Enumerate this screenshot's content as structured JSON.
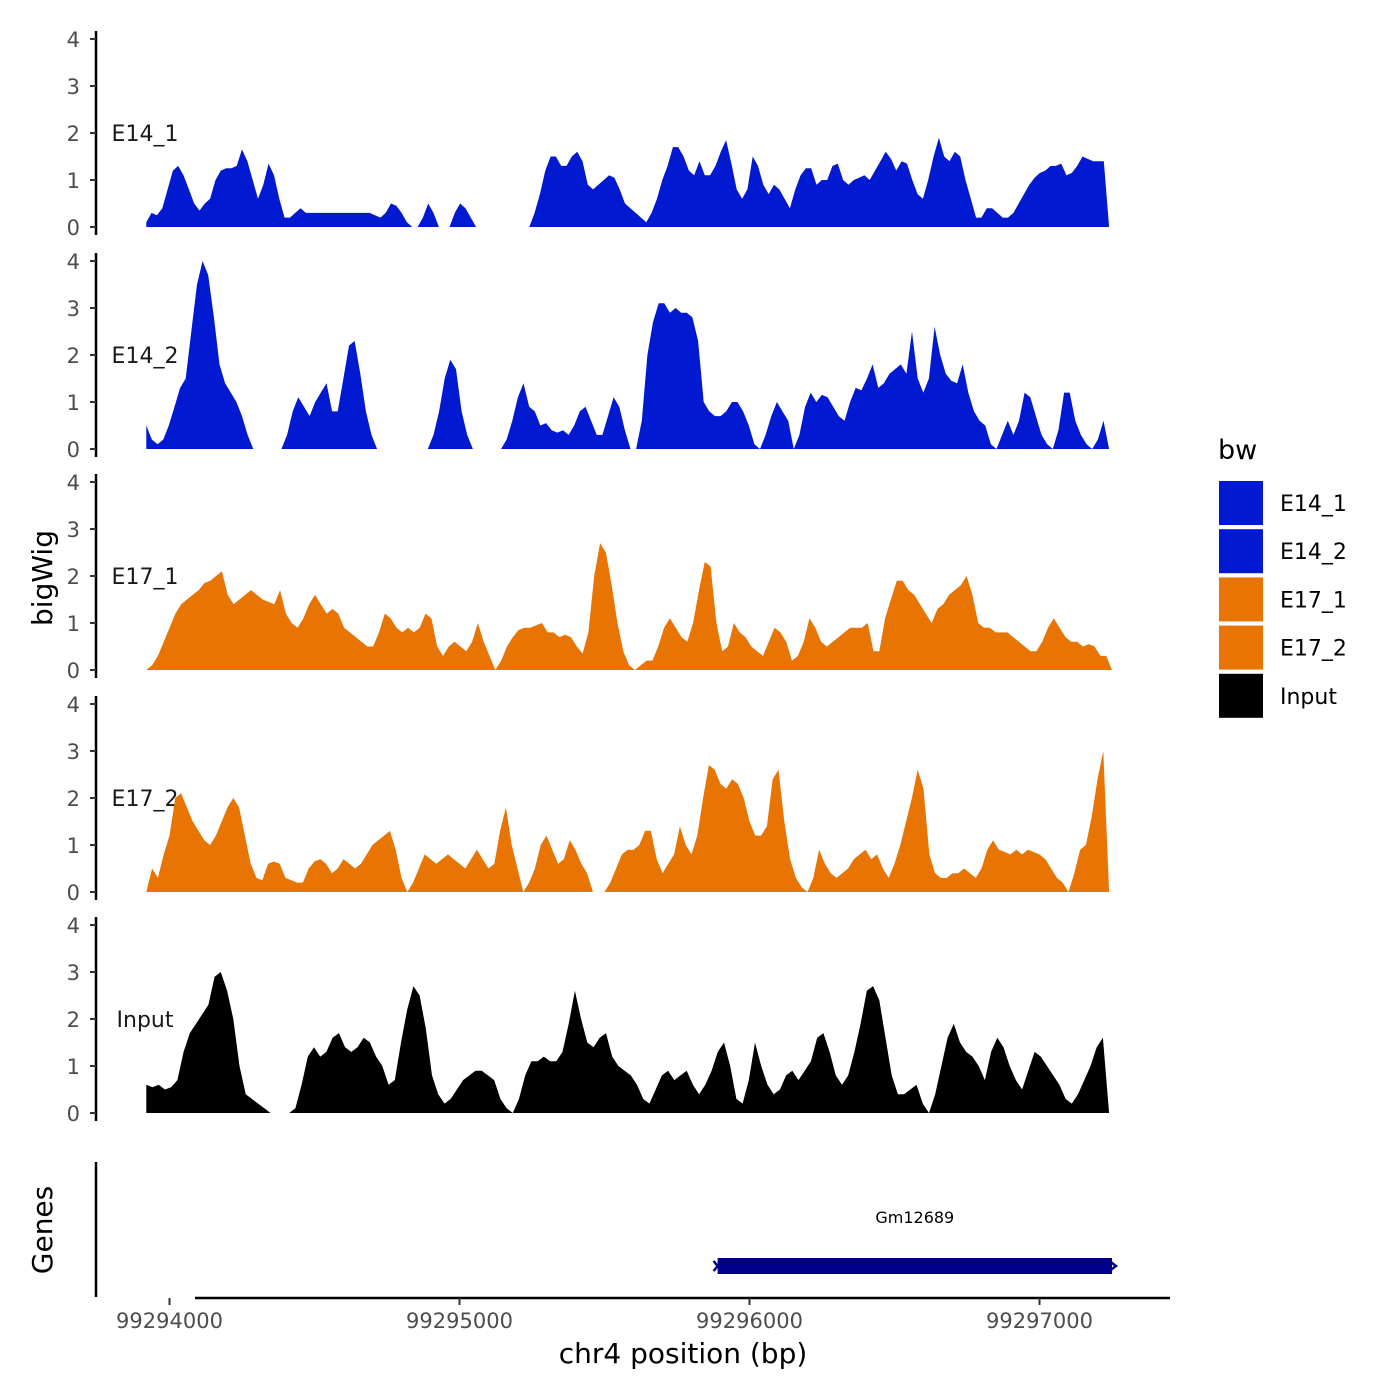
{
  "chart_data": {
    "type": "area",
    "ylabel": "bigWig",
    "genes_label": "Genes",
    "xlabel": "chr4 position (bp)",
    "xlim": [
      99293750,
      99297450
    ],
    "x_ticks": [
      "99294000",
      "99295000",
      "99296000",
      "99297000"
    ],
    "x_tick_values": [
      99294000,
      99295000,
      99296000,
      99297000
    ],
    "ylim": [
      0,
      4
    ],
    "y_ticks": [
      "0",
      "1",
      "2",
      "3",
      "4"
    ],
    "legend": {
      "title": "bw",
      "entries": [
        {
          "label": "E14_1",
          "color": "#0019d1"
        },
        {
          "label": "E14_2",
          "color": "#0019d1"
        },
        {
          "label": "E17_1",
          "color": "#e87404"
        },
        {
          "label": "E17_2",
          "color": "#e87404"
        },
        {
          "label": "Input",
          "color": "#000000"
        }
      ]
    },
    "series": [
      {
        "name": "E14_1",
        "color": "#0019d1",
        "x_start": 99293920,
        "x_end": 99297240,
        "values": [
          0.1,
          0.3,
          0.25,
          0.4,
          0.8,
          1.2,
          1.3,
          1.1,
          0.8,
          0.5,
          0.35,
          0.5,
          0.6,
          1.0,
          1.2,
          1.25,
          1.25,
          1.3,
          1.65,
          1.4,
          1.0,
          0.6,
          0.9,
          1.35,
          1.1,
          0.6,
          0.2,
          0.2,
          0.3,
          0.4,
          0.3,
          0.3,
          0.3,
          0.3,
          0.3,
          0.3,
          0.3,
          0.3,
          0.3,
          0.3,
          0.3,
          0.3,
          0.3,
          0.25,
          0.2,
          0.3,
          0.5,
          0.45,
          0.3,
          0.1,
          0.0,
          0.0,
          0.2,
          0.5,
          0.3,
          0.0,
          0.0,
          0.0,
          0.3,
          0.5,
          0.4,
          0.2,
          0.0,
          null,
          null,
          null,
          null,
          null,
          null,
          null,
          null,
          null,
          0.0,
          0.3,
          0.7,
          1.2,
          1.5,
          1.5,
          1.3,
          1.3,
          1.5,
          1.6,
          1.4,
          0.9,
          0.8,
          0.9,
          1.0,
          1.1,
          1.05,
          0.8,
          0.5,
          0.4,
          0.3,
          0.2,
          0.1,
          0.3,
          0.6,
          1.0,
          1.3,
          1.7,
          1.7,
          1.5,
          1.2,
          1.1,
          1.4,
          1.1,
          1.1,
          1.3,
          1.6,
          1.85,
          1.35,
          0.8,
          0.6,
          0.8,
          1.5,
          1.3,
          0.9,
          0.7,
          0.9,
          0.8,
          0.6,
          0.4,
          0.8,
          1.1,
          1.25,
          1.25,
          0.9,
          1.0,
          1.0,
          1.3,
          1.35,
          1.0,
          0.9,
          1.0,
          1.05,
          1.1,
          1.0,
          1.2,
          1.4,
          1.6,
          1.45,
          1.2,
          1.4,
          1.35,
          1.0,
          0.7,
          0.6,
          1.0,
          1.5,
          1.9,
          1.5,
          1.4,
          1.6,
          1.5,
          1.0,
          0.6,
          0.2,
          0.2,
          0.4,
          0.4,
          0.3,
          0.2,
          0.2,
          0.3,
          0.5,
          0.7,
          0.9,
          1.05,
          1.15,
          1.2,
          1.3,
          1.3,
          1.35,
          1.1,
          1.15,
          1.3,
          1.5,
          1.45,
          1.4,
          1.4,
          1.4,
          0.0
        ]
      },
      {
        "name": "E14_2",
        "color": "#0019d1",
        "x_start": 99293920,
        "x_end": 99297240,
        "values": [
          0.5,
          0.2,
          0.1,
          0.2,
          0.5,
          0.9,
          1.3,
          1.5,
          2.5,
          3.5,
          4.0,
          3.7,
          2.8,
          1.8,
          1.4,
          1.2,
          1.0,
          0.7,
          0.3,
          0.0,
          0.0,
          null,
          null,
          0.0,
          0.0,
          0.3,
          0.8,
          1.1,
          0.9,
          0.7,
          1.0,
          1.2,
          1.4,
          0.8,
          0.8,
          1.5,
          2.2,
          2.3,
          1.6,
          0.8,
          0.3,
          0.0,
          0.0,
          null,
          null,
          null,
          null,
          null,
          null,
          null,
          0.0,
          0.3,
          0.8,
          1.5,
          1.9,
          1.7,
          0.8,
          0.3,
          0.0,
          null,
          null,
          null,
          null,
          0.0,
          0.2,
          0.6,
          1.1,
          1.4,
          0.9,
          0.8,
          0.5,
          0.55,
          0.4,
          0.35,
          0.4,
          0.3,
          0.5,
          0.8,
          0.9,
          0.6,
          0.3,
          0.3,
          0.7,
          1.1,
          0.9,
          0.4,
          0.0,
          0.0,
          0.6,
          2.0,
          2.7,
          3.1,
          3.1,
          2.9,
          3.0,
          2.9,
          2.9,
          2.8,
          2.3,
          1.0,
          0.8,
          0.7,
          0.7,
          0.8,
          1.0,
          1.0,
          0.8,
          0.5,
          0.1,
          0.0,
          0.3,
          0.7,
          1.0,
          0.8,
          0.6,
          0.0,
          0.3,
          0.9,
          1.2,
          1.0,
          1.15,
          1.1,
          0.9,
          0.7,
          0.6,
          1.0,
          1.3,
          1.25,
          1.5,
          1.8,
          1.3,
          1.4,
          1.6,
          1.7,
          1.8,
          1.6,
          2.5,
          1.5,
          1.2,
          1.5,
          2.6,
          2.0,
          1.6,
          1.45,
          1.4,
          1.8,
          1.2,
          0.8,
          0.6,
          0.5,
          0.1,
          0.0,
          0.3,
          0.6,
          0.3,
          0.6,
          1.2,
          1.1,
          0.7,
          0.3,
          0.1,
          0.0,
          0.4,
          1.2,
          1.2,
          0.6,
          0.3,
          0.1,
          0.0,
          0.2,
          0.6,
          0.0
        ]
      },
      {
        "name": "E17_1",
        "color": "#e87404",
        "x_start": 99293920,
        "x_end": 99297250,
        "values": [
          0.0,
          0.1,
          0.3,
          0.6,
          0.9,
          1.2,
          1.4,
          1.5,
          1.6,
          1.7,
          1.85,
          1.9,
          2.0,
          2.1,
          1.6,
          1.4,
          1.5,
          1.6,
          1.7,
          1.6,
          1.5,
          1.45,
          1.4,
          1.7,
          1.2,
          1.0,
          0.9,
          1.1,
          1.4,
          1.6,
          1.4,
          1.2,
          1.3,
          1.2,
          0.9,
          0.8,
          0.7,
          0.6,
          0.5,
          0.5,
          0.8,
          1.2,
          1.1,
          0.9,
          0.8,
          0.9,
          0.8,
          0.9,
          1.2,
          1.1,
          0.5,
          0.3,
          0.5,
          0.6,
          0.5,
          0.4,
          0.6,
          1.0,
          0.6,
          0.3,
          0.0,
          0.2,
          0.5,
          0.7,
          0.85,
          0.9,
          0.9,
          0.95,
          1.0,
          0.8,
          0.8,
          0.7,
          0.75,
          0.7,
          0.5,
          0.35,
          0.8,
          2.0,
          2.7,
          2.5,
          1.8,
          1.0,
          0.4,
          0.1,
          0.0,
          0.1,
          0.2,
          0.2,
          0.5,
          0.9,
          1.1,
          0.9,
          0.7,
          0.6,
          1.0,
          1.7,
          2.3,
          2.2,
          1.0,
          0.4,
          0.5,
          1.0,
          0.8,
          0.7,
          0.5,
          0.4,
          0.3,
          0.6,
          0.9,
          0.8,
          0.6,
          0.2,
          0.3,
          0.6,
          1.1,
          0.9,
          0.6,
          0.5,
          0.6,
          0.7,
          0.8,
          0.9,
          0.9,
          0.9,
          1.0,
          0.4,
          0.4,
          1.1,
          1.5,
          1.9,
          1.9,
          1.7,
          1.6,
          1.4,
          1.2,
          1.0,
          1.3,
          1.4,
          1.6,
          1.7,
          1.8,
          2.0,
          1.6,
          1.0,
          0.9,
          0.9,
          0.8,
          0.8,
          0.8,
          0.7,
          0.6,
          0.5,
          0.4,
          0.4,
          0.6,
          0.9,
          1.1,
          0.9,
          0.7,
          0.6,
          0.6,
          0.5,
          0.55,
          0.5,
          0.3,
          0.3,
          0.0
        ]
      },
      {
        "name": "E17_2",
        "color": "#e87404",
        "x_start": 99293920,
        "x_end": 99297240,
        "values": [
          0.0,
          0.5,
          0.3,
          0.8,
          1.2,
          2.0,
          2.1,
          1.8,
          1.5,
          1.3,
          1.1,
          1.0,
          1.2,
          1.5,
          1.8,
          2.0,
          1.8,
          1.2,
          0.6,
          0.3,
          0.25,
          0.6,
          0.65,
          0.6,
          0.3,
          0.25,
          0.2,
          0.2,
          0.5,
          0.65,
          0.7,
          0.6,
          0.4,
          0.5,
          0.7,
          0.6,
          0.5,
          0.6,
          0.8,
          1.0,
          1.1,
          1.2,
          1.3,
          0.9,
          0.3,
          0.0,
          0.2,
          0.5,
          0.8,
          0.7,
          0.6,
          0.7,
          0.8,
          0.7,
          0.6,
          0.5,
          0.7,
          0.9,
          0.7,
          0.5,
          0.6,
          1.3,
          1.8,
          1.0,
          0.5,
          0.0,
          0.2,
          0.5,
          1.0,
          1.2,
          0.9,
          0.6,
          0.7,
          1.1,
          0.9,
          0.6,
          0.4,
          0.0,
          null,
          0.0,
          0.2,
          0.5,
          0.8,
          0.9,
          0.9,
          1.0,
          1.3,
          1.3,
          0.7,
          0.4,
          0.6,
          0.8,
          1.4,
          1.0,
          0.8,
          1.2,
          2.0,
          2.7,
          2.6,
          2.3,
          2.2,
          2.4,
          2.3,
          2.0,
          1.5,
          1.2,
          1.2,
          1.4,
          2.4,
          2.6,
          1.5,
          0.7,
          0.3,
          0.1,
          0.0,
          0.3,
          0.9,
          0.6,
          0.4,
          0.3,
          0.4,
          0.5,
          0.7,
          0.8,
          0.9,
          0.7,
          0.8,
          0.5,
          0.3,
          0.6,
          1.0,
          1.5,
          2.0,
          2.6,
          2.2,
          0.8,
          0.4,
          0.3,
          0.3,
          0.4,
          0.4,
          0.5,
          0.4,
          0.3,
          0.5,
          0.9,
          1.1,
          0.9,
          0.85,
          0.8,
          0.9,
          0.8,
          0.9,
          0.85,
          0.8,
          0.7,
          0.5,
          0.3,
          0.2,
          0.0,
          0.4,
          0.9,
          1.0,
          1.6,
          2.4,
          3.0,
          0.0
        ]
      },
      {
        "name": "Input",
        "color": "#000000",
        "x_start": 99293920,
        "x_end": 99297240,
        "values": [
          0.6,
          0.55,
          0.6,
          0.5,
          0.55,
          0.7,
          1.3,
          1.7,
          1.9,
          2.1,
          2.3,
          2.9,
          3.0,
          2.6,
          2.0,
          1.0,
          0.4,
          0.3,
          0.2,
          0.1,
          0.0,
          0.0,
          null,
          0.0,
          0.1,
          0.6,
          1.2,
          1.4,
          1.2,
          1.3,
          1.6,
          1.7,
          1.4,
          1.3,
          1.4,
          1.6,
          1.5,
          1.2,
          1.0,
          0.6,
          0.7,
          1.5,
          2.2,
          2.7,
          2.5,
          1.8,
          0.8,
          0.4,
          0.2,
          0.3,
          0.5,
          0.7,
          0.8,
          0.9,
          0.9,
          0.8,
          0.7,
          0.3,
          0.1,
          0.0,
          0.3,
          0.8,
          1.1,
          1.1,
          1.2,
          1.1,
          1.1,
          1.3,
          1.9,
          2.6,
          2.0,
          1.5,
          1.4,
          1.6,
          1.7,
          1.2,
          1.0,
          0.9,
          0.8,
          0.6,
          0.3,
          0.2,
          0.5,
          0.8,
          0.9,
          0.7,
          0.8,
          0.9,
          0.6,
          0.4,
          0.6,
          0.9,
          1.3,
          1.5,
          1.0,
          0.3,
          0.2,
          0.7,
          1.5,
          1.0,
          0.6,
          0.4,
          0.5,
          0.8,
          0.9,
          0.7,
          0.9,
          1.1,
          1.6,
          1.7,
          1.3,
          0.8,
          0.6,
          0.8,
          1.3,
          1.9,
          2.6,
          2.7,
          2.4,
          1.6,
          0.8,
          0.4,
          0.4,
          0.5,
          0.6,
          0.2,
          0.0,
          0.4,
          1.0,
          1.6,
          1.9,
          1.5,
          1.3,
          1.2,
          1.0,
          0.7,
          1.3,
          1.6,
          1.4,
          1.0,
          0.7,
          0.5,
          0.9,
          1.3,
          1.2,
          1.0,
          0.8,
          0.6,
          0.3,
          0.2,
          0.4,
          0.7,
          1.0,
          1.4,
          1.6,
          0.0
        ]
      }
    ],
    "genes": [
      {
        "name": "Gm12689",
        "start": 99295890,
        "end": 99297250,
        "color": "#00008b"
      }
    ]
  }
}
